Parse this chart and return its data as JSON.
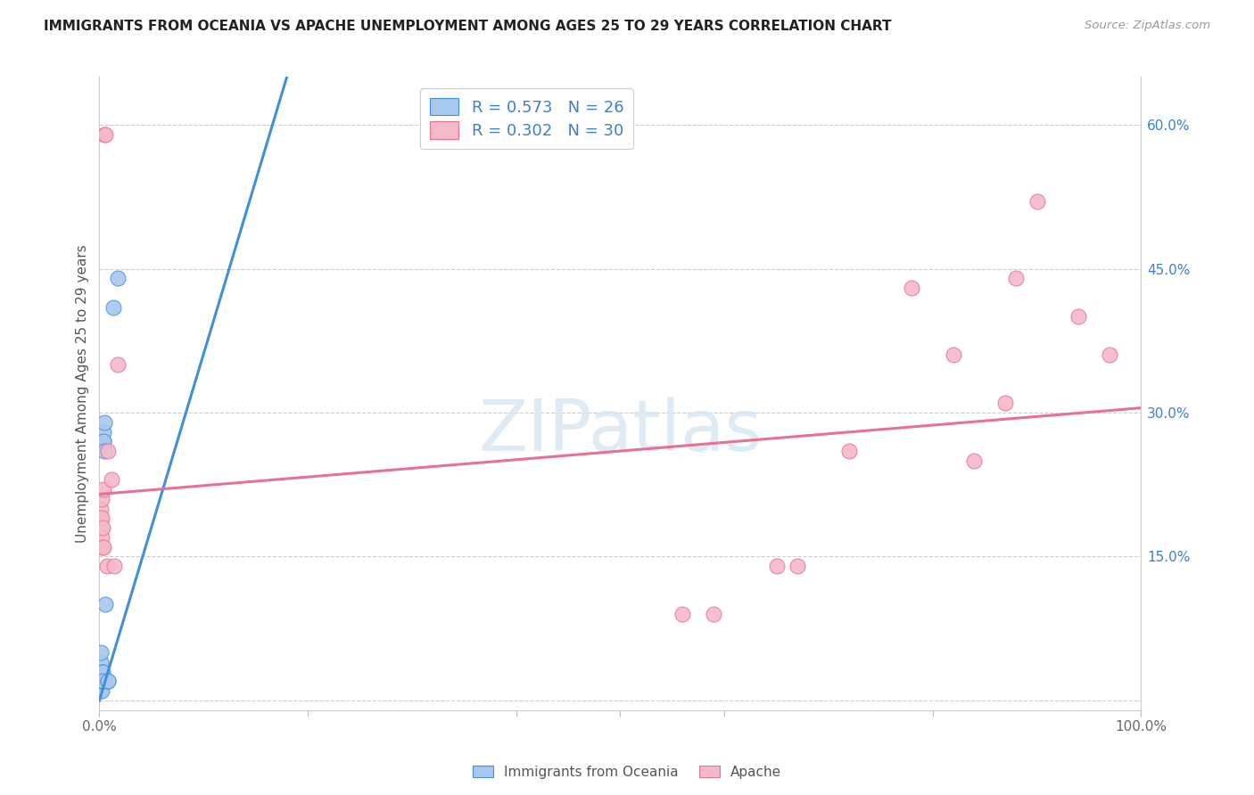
{
  "title": "IMMIGRANTS FROM OCEANIA VS APACHE UNEMPLOYMENT AMONG AGES 25 TO 29 YEARS CORRELATION CHART",
  "source": "Source: ZipAtlas.com",
  "ylabel": "Unemployment Among Ages 25 to 29 years",
  "xlim": [
    0,
    1.0
  ],
  "ylim": [
    -0.01,
    0.65
  ],
  "yticks_right": [
    0.0,
    0.15,
    0.3,
    0.45,
    0.6
  ],
  "ytick_labels_right": [
    "",
    "15.0%",
    "30.0%",
    "45.0%",
    "60.0%"
  ],
  "blue_R": 0.573,
  "blue_N": 26,
  "pink_R": 0.302,
  "pink_N": 30,
  "blue_fill": "#A8C8F0",
  "pink_fill": "#F4B8CB",
  "blue_edge": "#4090D8",
  "pink_edge": "#E87090",
  "legend_text_color": "#3B7FD4",
  "watermark": "ZIPatlas",
  "blue_dots": [
    [
      0.0,
      0.02
    ],
    [
      0.0,
      0.02
    ],
    [
      0.001,
      0.01
    ],
    [
      0.001,
      0.02
    ],
    [
      0.001,
      0.03
    ],
    [
      0.001,
      0.04
    ],
    [
      0.001,
      0.05
    ],
    [
      0.001,
      0.02
    ],
    [
      0.002,
      0.02
    ],
    [
      0.002,
      0.03
    ],
    [
      0.002,
      0.02
    ],
    [
      0.002,
      0.01
    ],
    [
      0.002,
      0.02
    ],
    [
      0.003,
      0.02
    ],
    [
      0.003,
      0.03
    ],
    [
      0.003,
      0.02
    ],
    [
      0.004,
      0.27
    ],
    [
      0.004,
      0.28
    ],
    [
      0.004,
      0.27
    ],
    [
      0.005,
      0.26
    ],
    [
      0.005,
      0.29
    ],
    [
      0.006,
      0.1
    ],
    [
      0.008,
      0.02
    ],
    [
      0.008,
      0.02
    ],
    [
      0.013,
      0.41
    ],
    [
      0.018,
      0.44
    ]
  ],
  "pink_dots": [
    [
      0.001,
      0.19
    ],
    [
      0.001,
      0.2
    ],
    [
      0.002,
      0.18
    ],
    [
      0.002,
      0.17
    ],
    [
      0.002,
      0.19
    ],
    [
      0.002,
      0.21
    ],
    [
      0.003,
      0.16
    ],
    [
      0.003,
      0.18
    ],
    [
      0.004,
      0.22
    ],
    [
      0.004,
      0.16
    ],
    [
      0.005,
      0.59
    ],
    [
      0.006,
      0.59
    ],
    [
      0.007,
      0.14
    ],
    [
      0.008,
      0.26
    ],
    [
      0.012,
      0.23
    ],
    [
      0.014,
      0.14
    ],
    [
      0.018,
      0.35
    ],
    [
      0.56,
      0.09
    ],
    [
      0.59,
      0.09
    ],
    [
      0.65,
      0.14
    ],
    [
      0.67,
      0.14
    ],
    [
      0.72,
      0.26
    ],
    [
      0.78,
      0.43
    ],
    [
      0.82,
      0.36
    ],
    [
      0.84,
      0.25
    ],
    [
      0.87,
      0.31
    ],
    [
      0.88,
      0.44
    ],
    [
      0.9,
      0.52
    ],
    [
      0.94,
      0.4
    ],
    [
      0.97,
      0.36
    ]
  ],
  "blue_trendline": [
    [
      0.0,
      0.0
    ],
    [
      0.18,
      0.65
    ]
  ],
  "pink_trendline": [
    [
      0.0,
      0.215
    ],
    [
      1.0,
      0.305
    ]
  ]
}
